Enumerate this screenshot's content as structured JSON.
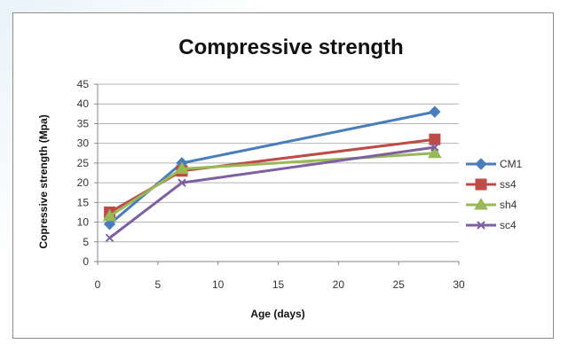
{
  "chart_data": {
    "type": "line",
    "title": "Compressive strength",
    "xlabel": "Age (days)",
    "ylabel": "Copressive  strength (Mpa)",
    "x": [
      1,
      7,
      28
    ],
    "xlim": [
      0,
      30
    ],
    "ylim": [
      0,
      45
    ],
    "xticks": [
      0,
      5,
      10,
      15,
      20,
      25,
      30
    ],
    "yticks": [
      0,
      5,
      10,
      15,
      20,
      25,
      30,
      35,
      40,
      45
    ],
    "grid": "horizontal",
    "legend": "right",
    "series": [
      {
        "name": "CM1",
        "values": [
          9.5,
          25,
          38
        ],
        "color": "#4a7ebb",
        "marker": "diamond"
      },
      {
        "name": "ss4",
        "values": [
          12.5,
          23,
          31
        ],
        "color": "#be4b48",
        "marker": "square"
      },
      {
        "name": "sh4",
        "values": [
          11.5,
          23.5,
          27.5
        ],
        "color": "#98b954",
        "marker": "triangle"
      },
      {
        "name": "sc4",
        "values": [
          6,
          20,
          29
        ],
        "color": "#7d60a0",
        "marker": "x"
      }
    ]
  }
}
